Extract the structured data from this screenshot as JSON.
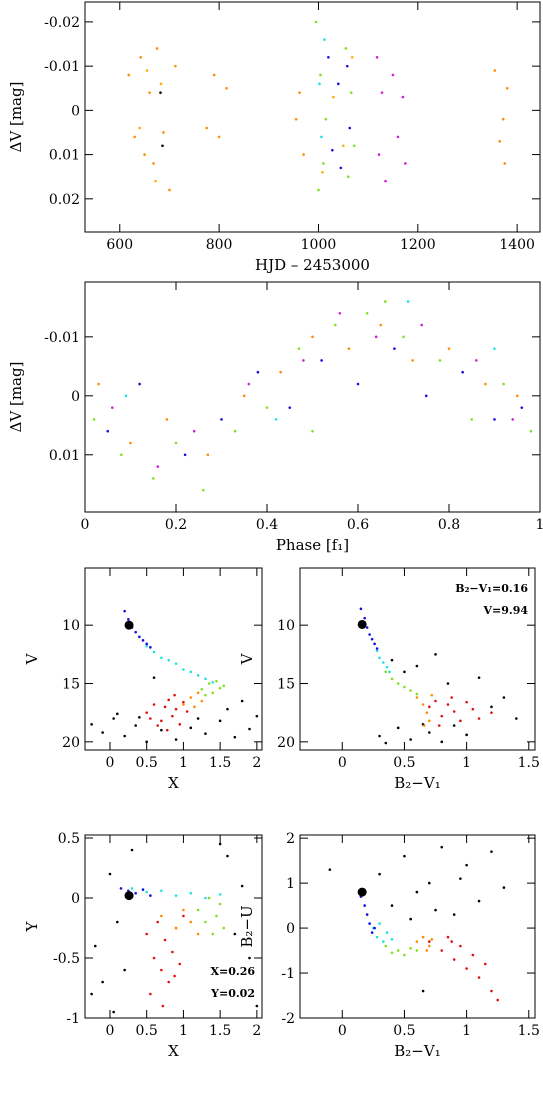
{
  "chart_data": [
    {
      "type": "scatter",
      "xlabel": "HJD – 2453000",
      "ylabel": "ΔV [mag]",
      "xlim": [
        530,
        1446
      ],
      "ylim": [
        -0.0245,
        0.0275
      ],
      "y_inverted": true,
      "xticks": [
        600,
        800,
        1000,
        1200,
        1400
      ],
      "yticks": [
        -0.02,
        -0.01,
        0,
        0.01,
        0.02
      ],
      "series": [
        {
          "color": "#ff8c00",
          "x": [
            618,
            630,
            642,
            650,
            660,
            668,
            675,
            688,
            700,
            712,
            775,
            790,
            800,
            815,
            955,
            962,
            970,
            1355,
            1365,
            1372,
            1380,
            1375
          ],
          "y": [
            -0.008,
            0.006,
            -0.012,
            0.01,
            -0.004,
            0.012,
            -0.014,
            0.005,
            0.018,
            -0.01,
            0.004,
            -0.008,
            0.006,
            -0.005,
            0.002,
            -0.004,
            0.01,
            -0.009,
            0.007,
            0.002,
            -0.005,
            0.012
          ]
        },
        {
          "color": "#ffb000",
          "x": [
            640,
            655,
            672,
            683,
            1008,
            1030,
            1050,
            1068
          ],
          "y": [
            0.004,
            -0.009,
            0.016,
            -0.006,
            0.014,
            -0.003,
            0.008,
            -0.012
          ]
        },
        {
          "color": "#80e020",
          "x": [
            995,
            1000,
            1004,
            1010,
            1015,
            1055,
            1060,
            1066,
            1072
          ],
          "y": [
            -0.02,
            0.018,
            -0.008,
            0.012,
            0.002,
            -0.014,
            0.015,
            -0.004,
            0.008
          ]
        },
        {
          "color": "#1010e0",
          "x": [
            1020,
            1028,
            1040,
            1045,
            1058,
            1063
          ],
          "y": [
            -0.012,
            0.009,
            -0.006,
            0.013,
            -0.01,
            0.004
          ]
        },
        {
          "color": "#d020d0",
          "x": [
            1118,
            1122,
            1128,
            1135,
            1150,
            1160,
            1170,
            1175
          ],
          "y": [
            -0.012,
            0.01,
            -0.004,
            0.016,
            -0.008,
            0.006,
            -0.003,
            0.012
          ]
        },
        {
          "color": "#20e0e0",
          "x": [
            1002,
            1006,
            1012
          ],
          "y": [
            -0.006,
            0.006,
            -0.016
          ]
        },
        {
          "color": "#000000",
          "x": [
            682,
            686
          ],
          "y": [
            -0.004,
            0.008
          ]
        }
      ]
    },
    {
      "type": "scatter",
      "xlabel": "Phase [f₁]",
      "ylabel": "ΔV [mag]",
      "xlim": [
        0,
        1
      ],
      "ylim": [
        -0.0193,
        0.0197
      ],
      "y_inverted": true,
      "xticks": [
        0,
        0.2,
        0.4,
        0.6,
        0.8,
        1
      ],
      "yticks": [
        -0.01,
        0,
        0.01
      ],
      "series": [
        {
          "color": "#80e020",
          "x": [
            0.02,
            0.08,
            0.15,
            0.2,
            0.26,
            0.33,
            0.4,
            0.47,
            0.55,
            0.62,
            0.7,
            0.78,
            0.85,
            0.92,
            0.98,
            0.12,
            0.5,
            0.66
          ],
          "y": [
            0.004,
            0.01,
            0.014,
            0.008,
            0.016,
            0.006,
            0.002,
            -0.008,
            -0.012,
            -0.014,
            -0.01,
            -0.006,
            0.004,
            -0.002,
            0.006,
            -0.002,
            0.006,
            -0.016
          ]
        },
        {
          "color": "#1010e0",
          "x": [
            0.05,
            0.12,
            0.22,
            0.3,
            0.38,
            0.45,
            0.52,
            0.6,
            0.68,
            0.75,
            0.83,
            0.9,
            0.96
          ],
          "y": [
            0.006,
            -0.002,
            0.01,
            0.004,
            -0.004,
            0.002,
            -0.006,
            -0.002,
            -0.008,
            0.0,
            -0.004,
            0.004,
            0.002
          ]
        },
        {
          "color": "#ff8c00",
          "x": [
            0.03,
            0.1,
            0.18,
            0.27,
            0.35,
            0.43,
            0.5,
            0.58,
            0.65,
            0.72,
            0.8,
            0.88,
            0.95
          ],
          "y": [
            -0.002,
            0.008,
            0.004,
            0.01,
            0.0,
            -0.004,
            -0.01,
            -0.008,
            -0.012,
            -0.006,
            -0.008,
            -0.002,
            0.0
          ]
        },
        {
          "color": "#d020d0",
          "x": [
            0.06,
            0.16,
            0.24,
            0.36,
            0.48,
            0.56,
            0.64,
            0.74,
            0.86,
            0.94
          ],
          "y": [
            0.002,
            0.012,
            0.006,
            -0.002,
            -0.006,
            -0.014,
            -0.01,
            -0.012,
            -0.006,
            0.004
          ]
        },
        {
          "color": "#20e0e0",
          "x": [
            0.09,
            0.42,
            0.71,
            0.9
          ],
          "y": [
            0.0,
            0.004,
            -0.016,
            -0.008
          ]
        }
      ]
    },
    {
      "type": "scatter",
      "xlabel": "X",
      "ylabel": "V",
      "xlim": [
        -0.34,
        2.07
      ],
      "ylim": [
        5.1,
        20.7
      ],
      "y_inverted": true,
      "xticks": [
        0,
        0.5,
        1,
        1.5,
        2
      ],
      "yticks": [
        10,
        15,
        20
      ],
      "series": [
        {
          "color": "#000000",
          "x": [
            -0.25,
            -0.1,
            0.05,
            0.2,
            0.35,
            0.5,
            0.7,
            0.9,
            1.1,
            1.3,
            1.5,
            1.7,
            1.9,
            0.1,
            0.4,
            1.2,
            1.6,
            2.0,
            1.8,
            0.6
          ],
          "y": [
            18.5,
            19.2,
            18.0,
            19.5,
            18.6,
            20.0,
            19.0,
            19.8,
            18.8,
            19.3,
            18.2,
            19.6,
            18.9,
            17.6,
            17.9,
            18.0,
            17.2,
            17.8,
            16.5,
            14.5
          ]
        },
        {
          "color": "#e01010",
          "x": [
            0.5,
            0.6,
            0.7,
            0.75,
            0.8,
            0.85,
            0.9,
            0.95,
            1.0,
            1.05,
            0.65,
            0.78,
            0.88,
            0.55
          ],
          "y": [
            17.5,
            16.8,
            18.2,
            17.0,
            16.4,
            17.8,
            17.2,
            18.5,
            16.6,
            17.4,
            18.6,
            19.0,
            16.0,
            18.0
          ]
        },
        {
          "color": "#ff8c00",
          "x": [
            1.0,
            1.1,
            1.15,
            1.2,
            1.25
          ],
          "y": [
            16.8,
            16.2,
            17.0,
            15.8,
            16.5
          ]
        },
        {
          "color": "#80e020",
          "x": [
            1.25,
            1.35,
            1.4,
            1.45,
            1.5,
            1.55,
            1.3
          ],
          "y": [
            15.5,
            15.0,
            15.8,
            14.8,
            15.4,
            15.2,
            16.0
          ]
        },
        {
          "color": "#20e0e0",
          "x": [
            0.5,
            0.6,
            0.7,
            0.8,
            0.9,
            1.0,
            1.1,
            1.2,
            1.3,
            1.4
          ],
          "y": [
            11.8,
            12.3,
            12.8,
            13.0,
            13.3,
            13.8,
            14.0,
            14.3,
            14.6,
            14.9
          ]
        },
        {
          "color": "#1010e0",
          "x": [
            0.2,
            0.25,
            0.3,
            0.35,
            0.4,
            0.45,
            0.5,
            0.55
          ],
          "y": [
            8.8,
            9.5,
            10.2,
            10.6,
            11.0,
            11.3,
            11.6,
            11.9
          ]
        },
        {
          "color": "#000000",
          "highlight": true,
          "x": [
            0.26
          ],
          "y": [
            10
          ]
        }
      ]
    },
    {
      "type": "scatter",
      "xlabel": "B₂−V₁",
      "ylabel": "V",
      "xlim": [
        -0.34,
        1.55
      ],
      "ylim": [
        5.1,
        20.7
      ],
      "y_inverted": true,
      "xticks": [
        0,
        0.5,
        1,
        1.5
      ],
      "yticks": [
        10,
        15,
        20
      ],
      "annotations": [
        "B₂−V₁=0.16",
        "V=9.94"
      ],
      "series": [
        {
          "color": "#000000",
          "x": [
            0.3,
            0.45,
            0.55,
            0.6,
            0.7,
            0.8,
            0.9,
            1.0,
            1.1,
            1.2,
            1.3,
            0.4,
            0.5,
            0.65,
            0.85,
            1.4,
            0.35,
            0.75
          ],
          "y": [
            19.5,
            18.8,
            19.8,
            13.5,
            19.2,
            20.0,
            18.6,
            19.4,
            14.5,
            17.0,
            16.2,
            13.0,
            14.0,
            18.5,
            15.0,
            18.0,
            20.1,
            12.5
          ]
        },
        {
          "color": "#e01010",
          "x": [
            0.7,
            0.75,
            0.8,
            0.85,
            0.9,
            0.95,
            1.0,
            1.05,
            1.1,
            0.78,
            0.88,
            1.2
          ],
          "y": [
            17.0,
            16.5,
            17.8,
            16.8,
            17.4,
            18.2,
            16.6,
            17.2,
            18.0,
            18.6,
            16.2,
            17.5
          ]
        },
        {
          "color": "#ff8c00",
          "x": [
            0.6,
            0.65,
            0.68,
            0.7,
            0.72,
            0.66
          ],
          "y": [
            16.2,
            16.8,
            17.5,
            18.2,
            16.0,
            18.6
          ]
        },
        {
          "color": "#80e020",
          "x": [
            0.35,
            0.4,
            0.45,
            0.5,
            0.55,
            0.6
          ],
          "y": [
            14.0,
            14.6,
            15.0,
            15.3,
            15.6,
            15.9
          ]
        },
        {
          "color": "#20e0e0",
          "x": [
            0.28,
            0.3,
            0.33,
            0.36,
            0.38
          ],
          "y": [
            12.2,
            12.8,
            13.2,
            13.6,
            14.0
          ]
        },
        {
          "color": "#1010e0",
          "x": [
            0.15,
            0.18,
            0.2,
            0.22,
            0.24,
            0.26,
            0.28
          ],
          "y": [
            8.6,
            9.4,
            10.2,
            10.8,
            11.2,
            11.6,
            12.0
          ]
        },
        {
          "color": "#000000",
          "highlight": true,
          "x": [
            0.16
          ],
          "y": [
            9.94
          ]
        }
      ]
    },
    {
      "type": "scatter",
      "xlabel": "X",
      "ylabel": "Y",
      "xlim": [
        -0.34,
        2.07
      ],
      "ylim": [
        -1,
        0.525
      ],
      "y_inverted": false,
      "xticks": [
        0,
        0.5,
        1,
        1.5,
        2
      ],
      "yticks": [
        -1,
        -0.5,
        0,
        0.5
      ],
      "annotations": [
        "X=0.26",
        "Y=0.02"
      ],
      "series": [
        {
          "color": "#000000",
          "x": [
            -0.2,
            -0.1,
            0.0,
            0.1,
            0.3,
            1.6,
            1.8,
            1.9,
            2.0,
            1.7,
            -0.25,
            0.2,
            1.5,
            0.05
          ],
          "y": [
            -0.4,
            -0.7,
            0.2,
            -0.2,
            0.4,
            0.35,
            0.1,
            -0.5,
            -0.9,
            -0.3,
            -0.8,
            -0.6,
            0.45,
            -0.95
          ]
        },
        {
          "color": "#e01010",
          "x": [
            0.5,
            0.6,
            0.65,
            0.7,
            0.75,
            0.8,
            0.85,
            0.9,
            0.95,
            1.0,
            0.55,
            0.72,
            0.88
          ],
          "y": [
            -0.3,
            -0.5,
            -0.2,
            -0.6,
            -0.35,
            -0.7,
            -0.45,
            -0.25,
            -0.55,
            -0.15,
            -0.8,
            -0.9,
            -0.65
          ]
        },
        {
          "color": "#ff8c00",
          "x": [
            0.9,
            1.0,
            1.1,
            1.2,
            0.7
          ],
          "y": [
            -0.25,
            -0.1,
            -0.2,
            -0.3,
            -0.15
          ]
        },
        {
          "color": "#80e020",
          "x": [
            1.2,
            1.3,
            1.35,
            1.4,
            1.45,
            1.5,
            1.55
          ],
          "y": [
            -0.1,
            -0.2,
            0.0,
            -0.3,
            -0.15,
            -0.05,
            -0.25
          ]
        },
        {
          "color": "#20e0e0",
          "x": [
            0.3,
            0.5,
            0.7,
            0.9,
            1.1,
            1.3,
            1.5
          ],
          "y": [
            0.08,
            0.05,
            0.06,
            0.02,
            0.04,
            0.0,
            0.03
          ]
        },
        {
          "color": "#1010e0",
          "x": [
            0.15,
            0.25,
            0.35,
            0.45,
            0.55
          ],
          "y": [
            0.08,
            0.06,
            0.04,
            0.07,
            0.02
          ]
        },
        {
          "color": "#000000",
          "highlight": true,
          "x": [
            0.26
          ],
          "y": [
            0.02
          ]
        }
      ]
    },
    {
      "type": "scatter",
      "xlabel": "B₂−V₁",
      "ylabel": "B₂−U",
      "xlim": [
        -0.34,
        1.55
      ],
      "ylim": [
        -2,
        2.07
      ],
      "y_inverted": false,
      "xticks": [
        0,
        0.5,
        1,
        1.5
      ],
      "yticks": [
        -2,
        -1,
        0,
        1,
        2
      ],
      "series": [
        {
          "color": "#000000",
          "x": [
            0.3,
            0.4,
            0.5,
            0.6,
            0.7,
            0.8,
            0.9,
            1.0,
            1.1,
            1.2,
            0.55,
            0.75,
            0.95,
            1.3,
            -0.1,
            0.65
          ],
          "y": [
            1.2,
            0.5,
            1.6,
            0.8,
            1.0,
            1.8,
            0.3,
            1.4,
            0.6,
            1.7,
            0.2,
            0.4,
            1.1,
            0.9,
            1.3,
            -1.4
          ]
        },
        {
          "color": "#e01010",
          "x": [
            0.7,
            0.8,
            0.85,
            0.9,
            0.95,
            1.0,
            1.05,
            1.1,
            1.15,
            1.2,
            0.88,
            1.25
          ],
          "y": [
            -0.3,
            -0.5,
            -0.2,
            -0.7,
            -0.4,
            -0.9,
            -0.6,
            -1.1,
            -0.8,
            -1.4,
            -0.3,
            -1.6
          ]
        },
        {
          "color": "#ff8c00",
          "x": [
            0.6,
            0.65,
            0.7,
            0.72,
            0.68
          ],
          "y": [
            -0.3,
            -0.2,
            -0.4,
            -0.25,
            -0.5
          ]
        },
        {
          "color": "#80e020",
          "x": [
            0.35,
            0.4,
            0.45,
            0.5,
            0.55,
            0.6
          ],
          "y": [
            -0.4,
            -0.55,
            -0.5,
            -0.6,
            -0.45,
            -0.5
          ]
        },
        {
          "color": "#20e0e0",
          "x": [
            0.25,
            0.28,
            0.3,
            0.33,
            0.36,
            0.4
          ],
          "y": [
            0.0,
            -0.2,
            0.1,
            -0.3,
            -0.1,
            -0.25
          ]
        },
        {
          "color": "#1010e0",
          "x": [
            0.15,
            0.18,
            0.2,
            0.22,
            0.24,
            0.26
          ],
          "y": [
            0.7,
            0.5,
            0.3,
            0.1,
            -0.1,
            0.0
          ]
        },
        {
          "color": "#000000",
          "highlight": true,
          "x": [
            0.16
          ],
          "y": [
            0.8
          ]
        }
      ]
    }
  ]
}
